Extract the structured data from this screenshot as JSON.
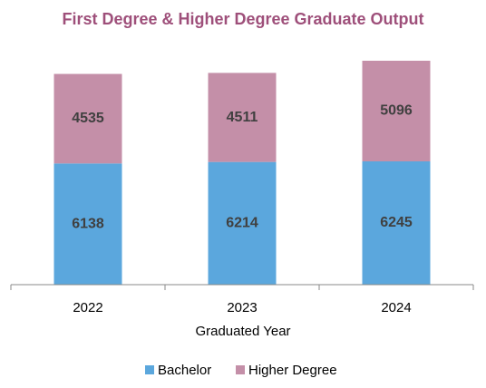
{
  "chart_data": {
    "type": "stacked_bar",
    "title": "First Degree & Higher Degree Graduate Output",
    "x_label": "Graduated Year",
    "categories": [
      "2022",
      "2023",
      "2024"
    ],
    "series": [
      {
        "name": "Bachelor",
        "color": "#5ba7dd",
        "values": [
          6138,
          6214,
          6245
        ]
      },
      {
        "name": "Higher Degree",
        "color": "#c48fa8",
        "values": [
          4535,
          4511,
          5096
        ]
      }
    ],
    "legend": "bottom"
  }
}
